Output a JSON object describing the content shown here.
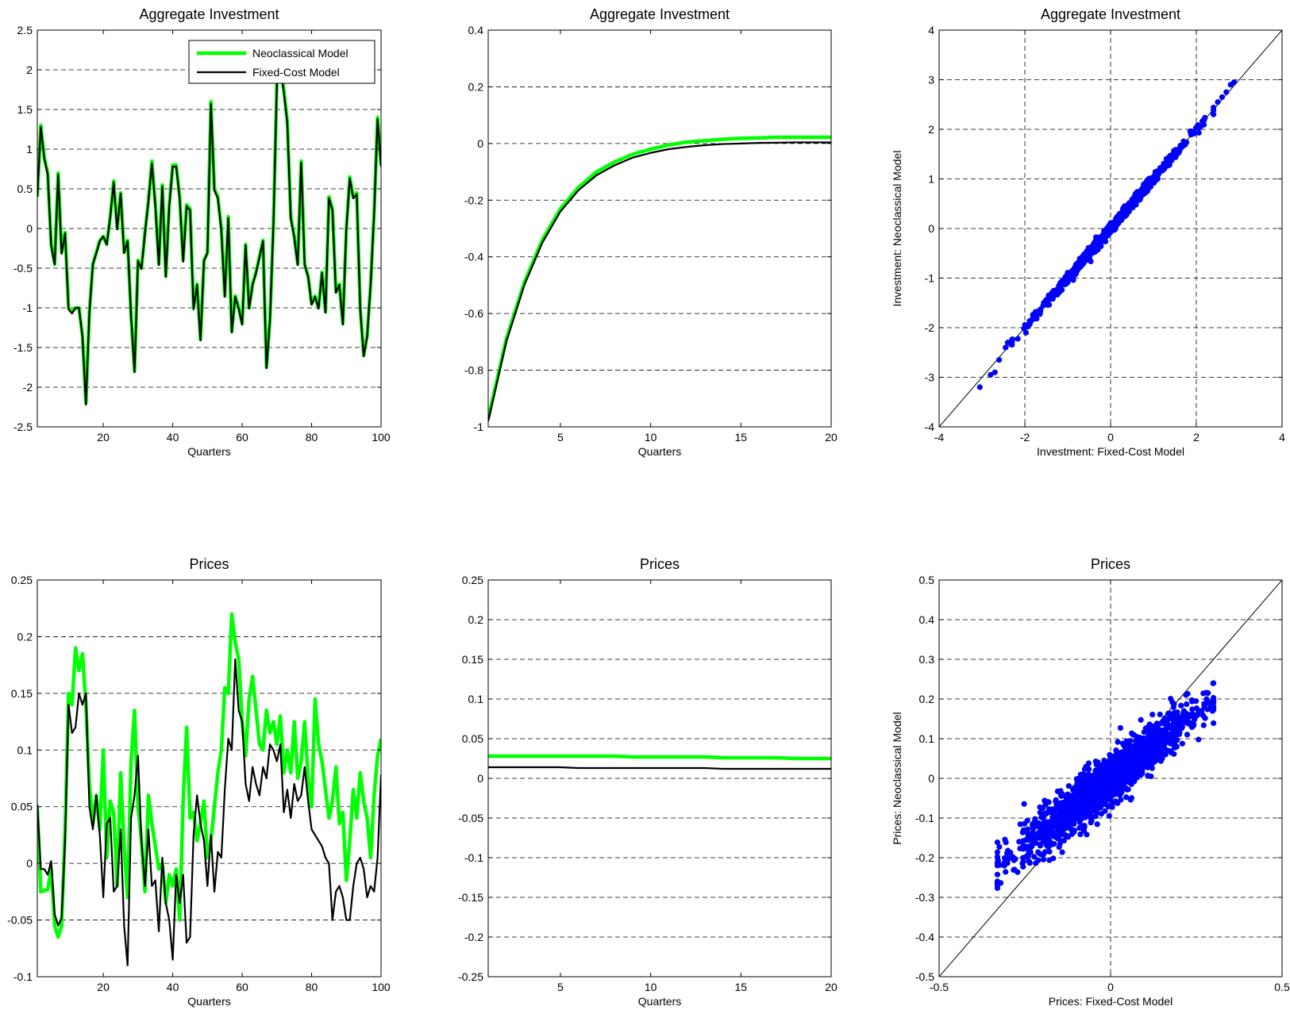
{
  "colors": {
    "neoclassical": "#00ff00",
    "fixed_cost": "#000000",
    "scatter": "#0000ff",
    "grid": "#000000",
    "background": "#ffffff"
  },
  "chart_data": [
    {
      "id": "ts-investment",
      "type": "line",
      "title": "Aggregate Investment",
      "xlabel": "Quarters",
      "ylabel": "",
      "xlim": [
        1,
        100
      ],
      "ylim": [
        -2.5,
        2.5
      ],
      "xticks": [
        20,
        40,
        60,
        80,
        100
      ],
      "yticks": [
        -2.5,
        -2,
        -1.5,
        -1,
        -0.5,
        0,
        0.5,
        1,
        1.5,
        2,
        2.5
      ],
      "ytick_labels": [
        "-2.5",
        "-2",
        "-1.5",
        "-1",
        "-0.5",
        "0",
        "0.5",
        "1",
        "1.5",
        "2",
        "2.5"
      ],
      "grid": "y-dashed",
      "legend": {
        "placement": "top-right",
        "entries": [
          "Neoclassical Model",
          "Fixed-Cost Model"
        ]
      },
      "x": [
        1,
        2,
        3,
        4,
        5,
        6,
        7,
        8,
        9,
        10,
        11,
        12,
        13,
        14,
        15,
        16,
        17,
        18,
        19,
        20,
        21,
        22,
        23,
        24,
        25,
        26,
        27,
        28,
        29,
        30,
        31,
        32,
        33,
        34,
        35,
        36,
        37,
        38,
        39,
        40,
        41,
        42,
        43,
        44,
        45,
        46,
        47,
        48,
        49,
        50,
        51,
        52,
        53,
        54,
        55,
        56,
        57,
        58,
        59,
        60,
        61,
        62,
        63,
        64,
        65,
        66,
        67,
        68,
        69,
        70,
        71,
        72,
        73,
        74,
        75,
        76,
        77,
        78,
        79,
        80,
        81,
        82,
        83,
        84,
        85,
        86,
        87,
        88,
        89,
        90,
        91,
        92,
        93,
        94,
        95,
        96,
        97,
        98,
        99,
        100
      ],
      "series": [
        {
          "name": "Neoclassical Model",
          "color": "#00ff00",
          "width": 4.5,
          "values": [
            0.4,
            1.3,
            0.9,
            0.7,
            -0.2,
            -0.45,
            0.7,
            -0.3,
            -0.05,
            -1.0,
            -1.05,
            -1.0,
            -1.0,
            -1.35,
            -2.2,
            -1.05,
            -0.45,
            -0.3,
            -0.15,
            -0.1,
            -0.2,
            0.15,
            0.6,
            0.0,
            0.45,
            -0.3,
            -0.15,
            -1.1,
            -1.8,
            -0.4,
            -0.5,
            -0.05,
            0.35,
            0.85,
            0.3,
            -0.45,
            0.55,
            -0.6,
            0.3,
            0.8,
            0.8,
            0.4,
            -0.4,
            0.3,
            0.25,
            -1.0,
            -0.7,
            -1.4,
            -0.4,
            -0.3,
            1.6,
            0.5,
            0.4,
            0.0,
            -0.85,
            0.15,
            -1.3,
            -0.85,
            -1.0,
            -1.2,
            -0.2,
            -1.0,
            -0.7,
            -0.55,
            -0.35,
            -0.15,
            -1.75,
            -1.15,
            0.05,
            1.85,
            2.05,
            1.75,
            1.35,
            0.15,
            -0.1,
            -0.45,
            0.85,
            -0.45,
            -0.6,
            -0.95,
            -0.85,
            -1.0,
            -0.55,
            -1.05,
            0.4,
            0.25,
            -0.8,
            -0.7,
            -1.2,
            0.0,
            0.65,
            0.4,
            0.45,
            -1.0,
            -1.6,
            -1.35,
            -0.7,
            0.2,
            1.4,
            0.8
          ]
        },
        {
          "name": "Fixed-Cost Model",
          "color": "#000000",
          "width": 2.2,
          "values": [
            0.4,
            1.28,
            0.88,
            0.68,
            -0.22,
            -0.45,
            0.68,
            -0.32,
            -0.06,
            -1.02,
            -1.07,
            -1.0,
            -1.0,
            -1.36,
            -2.22,
            -1.06,
            -0.45,
            -0.31,
            -0.16,
            -0.1,
            -0.2,
            0.14,
            0.58,
            -0.01,
            0.44,
            -0.31,
            -0.16,
            -1.1,
            -1.81,
            -0.41,
            -0.51,
            -0.06,
            0.34,
            0.82,
            0.28,
            -0.46,
            0.53,
            -0.61,
            0.28,
            0.78,
            0.78,
            0.38,
            -0.42,
            0.28,
            0.23,
            -1.02,
            -0.71,
            -1.41,
            -0.41,
            -0.31,
            1.57,
            0.48,
            0.38,
            -0.02,
            -0.86,
            0.13,
            -1.31,
            -0.86,
            -1.01,
            -1.21,
            -0.21,
            -1.01,
            -0.71,
            -0.56,
            -0.36,
            -0.16,
            -1.76,
            -1.16,
            0.03,
            1.82,
            2.0,
            1.72,
            1.33,
            0.13,
            -0.11,
            -0.46,
            0.83,
            -0.46,
            -0.61,
            -0.96,
            -0.86,
            -1.01,
            -0.56,
            -1.06,
            0.38,
            0.23,
            -0.81,
            -0.71,
            -1.21,
            -0.01,
            0.63,
            0.38,
            0.43,
            -1.01,
            -1.61,
            -1.36,
            -0.71,
            0.18,
            1.38,
            0.78
          ]
        }
      ]
    },
    {
      "id": "irf-investment",
      "type": "line",
      "title": "Aggregate Investment",
      "xlabel": "Quarters",
      "ylabel": "",
      "xlim": [
        1,
        20
      ],
      "ylim": [
        -1,
        0.4
      ],
      "xticks": [
        5,
        10,
        15,
        20
      ],
      "yticks": [
        -1,
        -0.8,
        -0.6,
        -0.4,
        -0.2,
        0,
        0.2,
        0.4
      ],
      "ytick_labels": [
        "-1",
        "-0.8",
        "-0.6",
        "-0.4",
        "-0.2",
        "0",
        "0.2",
        "0.4"
      ],
      "grid": "y-dashed",
      "x": [
        1,
        2,
        3,
        4,
        5,
        6,
        7,
        8,
        9,
        10,
        11,
        12,
        13,
        14,
        15,
        16,
        17,
        18,
        19,
        20
      ],
      "series": [
        {
          "name": "Neoclassical Model",
          "color": "#00ff00",
          "width": 4.5,
          "values": [
            -0.97,
            -0.69,
            -0.49,
            -0.34,
            -0.23,
            -0.155,
            -0.1,
            -0.065,
            -0.038,
            -0.02,
            -0.005,
            0.005,
            0.01,
            0.015,
            0.018,
            0.02,
            0.022,
            0.022,
            0.022,
            0.022
          ]
        },
        {
          "name": "Fixed-Cost Model",
          "color": "#000000",
          "width": 2.2,
          "values": [
            -0.98,
            -0.7,
            -0.5,
            -0.35,
            -0.24,
            -0.165,
            -0.112,
            -0.077,
            -0.05,
            -0.033,
            -0.02,
            -0.012,
            -0.006,
            -0.002,
            0.0,
            0.002,
            0.003,
            0.004,
            0.004,
            0.004
          ]
        }
      ]
    },
    {
      "id": "scatter-investment",
      "type": "scatter",
      "title": "Aggregate Investment",
      "xlabel": "Investment: Fixed-Cost Model",
      "ylabel": "Investment: Neoclassical Model",
      "xlim": [
        -4,
        4
      ],
      "ylim": [
        -4,
        4
      ],
      "xticks": [
        -4,
        -2,
        0,
        2,
        4
      ],
      "yticks": [
        -4,
        -3,
        -2,
        -1,
        0,
        1,
        2,
        3,
        4
      ],
      "xtick_labels": [
        "-4",
        "-2",
        "0",
        "2",
        "4"
      ],
      "ytick_labels": [
        "-4",
        "-3",
        "-2",
        "-1",
        "0",
        "1",
        "2",
        "3",
        "4"
      ],
      "grid": "both-dashed",
      "reference_line": "45-degree",
      "cloud": {
        "x_min": -2.3,
        "x_max": 2.4,
        "slope": 1.0,
        "noise": 0.05,
        "count": 900
      },
      "extra_points": [
        [
          -3.05,
          -3.2
        ],
        [
          -2.8,
          -2.95
        ],
        [
          -2.7,
          -2.9
        ],
        [
          -2.6,
          -2.65
        ],
        [
          -2.45,
          -2.4
        ],
        [
          -2.4,
          -2.3
        ],
        [
          2.5,
          2.55
        ],
        [
          2.6,
          2.65
        ],
        [
          2.7,
          2.75
        ],
        [
          2.8,
          2.9
        ],
        [
          2.88,
          2.95
        ]
      ]
    },
    {
      "id": "ts-prices",
      "type": "line",
      "title": "Prices",
      "xlabel": "Quarters",
      "ylabel": "",
      "xlim": [
        1,
        100
      ],
      "ylim": [
        -0.1,
        0.25
      ],
      "xticks": [
        20,
        40,
        60,
        80,
        100
      ],
      "yticks": [
        -0.1,
        -0.05,
        0,
        0.05,
        0.1,
        0.15,
        0.2,
        0.25
      ],
      "ytick_labels": [
        "-0.1",
        "-0.05",
        "0",
        "0.05",
        "0.1",
        "0.15",
        "0.2",
        "0.25"
      ],
      "grid": "y-dashed",
      "x": [
        1,
        2,
        3,
        4,
        5,
        6,
        7,
        8,
        9,
        10,
        11,
        12,
        13,
        14,
        15,
        16,
        17,
        18,
        19,
        20,
        21,
        22,
        23,
        24,
        25,
        26,
        27,
        28,
        29,
        30,
        31,
        32,
        33,
        34,
        35,
        36,
        37,
        38,
        39,
        40,
        41,
        42,
        43,
        44,
        45,
        46,
        47,
        48,
        49,
        50,
        51,
        52,
        53,
        54,
        55,
        56,
        57,
        58,
        59,
        60,
        61,
        62,
        63,
        64,
        65,
        66,
        67,
        68,
        69,
        70,
        71,
        72,
        73,
        74,
        75,
        76,
        77,
        78,
        79,
        80,
        81,
        82,
        83,
        84,
        85,
        86,
        87,
        88,
        89,
        90,
        91,
        92,
        93,
        94,
        95,
        96,
        97,
        98,
        99,
        100
      ],
      "series": [
        {
          "name": "Neoclassical Model",
          "color": "#00ff00",
          "width": 4.5,
          "values": [
            0.05,
            -0.025,
            -0.024,
            -0.023,
            -0.005,
            -0.055,
            -0.065,
            -0.055,
            0.03,
            0.15,
            0.14,
            0.19,
            0.17,
            0.185,
            0.14,
            0.07,
            0.035,
            0.06,
            0.03,
            0.1,
            0.005,
            0.055,
            0.045,
            -0.02,
            0.08,
            0.015,
            -0.03,
            0.09,
            0.135,
            0.05,
            0.02,
            -0.025,
            0.06,
            0.035,
            0.015,
            -0.005,
            0.0,
            -0.035,
            -0.01,
            -0.02,
            -0.005,
            -0.05,
            0.055,
            0.12,
            0.04,
            0.045,
            0.02,
            0.035,
            0.055,
            0.005,
            0.02,
            0.05,
            0.08,
            0.1,
            0.155,
            0.15,
            0.22,
            0.195,
            0.18,
            0.125,
            0.095,
            0.145,
            0.165,
            0.135,
            0.105,
            0.1,
            0.135,
            0.115,
            0.125,
            0.105,
            0.13,
            0.08,
            0.1,
            0.08,
            0.125,
            0.075,
            0.09,
            0.125,
            0.075,
            0.05,
            0.145,
            0.105,
            0.09,
            0.065,
            0.04,
            0.055,
            0.085,
            0.035,
            0.045,
            -0.015,
            0.02,
            0.065,
            0.04,
            0.08,
            0.055,
            0.04,
            0.005,
            0.06,
            0.095,
            0.11
          ]
        },
        {
          "name": "Fixed-Cost Model",
          "color": "#000000",
          "width": 2.2,
          "values": [
            0.052,
            -0.005,
            -0.005,
            -0.01,
            0.002,
            -0.045,
            -0.055,
            -0.048,
            0.02,
            0.14,
            0.115,
            0.12,
            0.15,
            0.14,
            0.15,
            0.05,
            0.03,
            0.06,
            0.025,
            -0.03,
            0.035,
            0.04,
            -0.025,
            -0.02,
            0.03,
            -0.055,
            -0.09,
            0.04,
            0.06,
            0.095,
            0.02,
            -0.02,
            0.03,
            -0.02,
            -0.015,
            -0.06,
            0.005,
            -0.035,
            -0.05,
            -0.085,
            -0.01,
            -0.035,
            -0.01,
            -0.07,
            -0.065,
            0.025,
            0.06,
            0.035,
            0.02,
            -0.02,
            0.025,
            -0.025,
            0.01,
            0.005,
            0.065,
            0.11,
            0.1,
            0.18,
            0.135,
            0.125,
            0.07,
            0.055,
            0.085,
            0.07,
            0.06,
            0.085,
            0.075,
            0.105,
            0.1,
            0.09,
            0.105,
            0.045,
            0.065,
            0.04,
            0.07,
            0.055,
            0.06,
            0.085,
            0.055,
            0.03,
            0.025,
            0.02,
            0.015,
            0.005,
            0.0,
            -0.05,
            -0.025,
            -0.02,
            -0.03,
            -0.05,
            -0.05,
            -0.02,
            0.0,
            0.005,
            -0.005,
            -0.03,
            -0.02,
            -0.025,
            0.005,
            0.078
          ]
        }
      ]
    },
    {
      "id": "irf-prices",
      "type": "line",
      "title": "Prices",
      "xlabel": "Quarters",
      "ylabel": "",
      "xlim": [
        1,
        20
      ],
      "ylim": [
        -0.25,
        0.25
      ],
      "xticks": [
        5,
        10,
        15,
        20
      ],
      "yticks": [
        -0.25,
        -0.2,
        -0.15,
        -0.1,
        -0.05,
        0,
        0.05,
        0.1,
        0.15,
        0.2,
        0.25
      ],
      "ytick_labels": [
        "-0.25",
        "-0.2",
        "-0.15",
        "-0.1",
        "-0.05",
        "0",
        "0.05",
        "0.1",
        "0.15",
        "0.2",
        "0.25"
      ],
      "grid": "y-dashed",
      "x": [
        1,
        2,
        3,
        4,
        5,
        6,
        7,
        8,
        9,
        10,
        11,
        12,
        13,
        14,
        15,
        16,
        17,
        18,
        19,
        20
      ],
      "series": [
        {
          "name": "Neoclassical Model",
          "color": "#00ff00",
          "width": 4.5,
          "values": [
            0.028,
            0.028,
            0.028,
            0.028,
            0.028,
            0.028,
            0.028,
            0.028,
            0.027,
            0.027,
            0.027,
            0.027,
            0.027,
            0.026,
            0.026,
            0.026,
            0.026,
            0.025,
            0.025,
            0.025
          ]
        },
        {
          "name": "Fixed-Cost Model",
          "color": "#000000",
          "width": 2.2,
          "values": [
            0.014,
            0.014,
            0.014,
            0.014,
            0.014,
            0.013,
            0.013,
            0.013,
            0.013,
            0.013,
            0.013,
            0.013,
            0.013,
            0.012,
            0.012,
            0.012,
            0.012,
            0.012,
            0.012,
            0.012
          ]
        }
      ]
    },
    {
      "id": "scatter-prices",
      "type": "scatter",
      "title": "Prices",
      "xlabel": "Prices: Fixed-Cost Model",
      "ylabel": "Prices: Neoclassical Model",
      "xlim": [
        -0.5,
        0.5
      ],
      "ylim": [
        -0.5,
        0.5
      ],
      "xticks": [
        -0.5,
        0,
        0.5
      ],
      "yticks": [
        -0.5,
        -0.4,
        -0.3,
        -0.2,
        -0.1,
        0,
        0.1,
        0.2,
        0.3,
        0.4,
        0.5
      ],
      "xtick_labels": [
        "-0.5",
        "0",
        "0.5"
      ],
      "ytick_labels": [
        "-0.5",
        "-0.4",
        "-0.3",
        "-0.2",
        "-0.1",
        "0",
        "0.1",
        "0.2",
        "0.3",
        "0.4",
        "0.5"
      ],
      "grid": "both-dashed",
      "reference_line": "45-degree",
      "cloud": {
        "x_min": -0.33,
        "x_max": 0.3,
        "slope": 0.68,
        "noise": 0.03,
        "count": 1800
      },
      "extra_points": [
        [
          0.3,
          0.24
        ],
        [
          0.28,
          0.2
        ],
        [
          0.22,
          0.21
        ],
        [
          -0.33,
          -0.2
        ],
        [
          -0.31,
          -0.22
        ],
        [
          -0.28,
          -0.23
        ]
      ]
    }
  ]
}
